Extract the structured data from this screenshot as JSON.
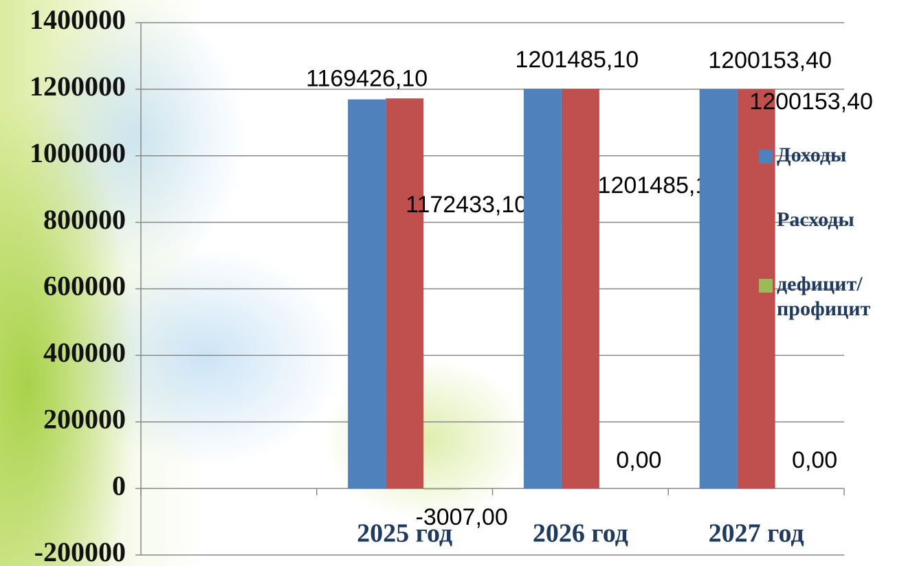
{
  "chart_data": {
    "type": "bar",
    "categories": [
      null,
      "2025 год",
      "2026 год",
      "2027 год"
    ],
    "series": [
      {
        "name": "Доходы",
        "color": "#4f81bd",
        "values": [
          null,
          1169426.1,
          1201485.1,
          1200153.4
        ],
        "value_labels": [
          null,
          "1169426,10",
          "1201485,10",
          "1200153,40"
        ]
      },
      {
        "name": "Расходы",
        "color": "#c0504d",
        "values": [
          null,
          1172433.1,
          1201485.1,
          1200153.4
        ],
        "value_labels": [
          null,
          "1172433,10",
          "1201485,10",
          "1200153,40"
        ]
      },
      {
        "name": "дефицит/ профицит",
        "color": "#9bbb59",
        "values": [
          null,
          -3007,
          0,
          0
        ],
        "value_labels": [
          null,
          "-3007,00",
          "0,00",
          "0,00"
        ]
      }
    ],
    "ylim": [
      -200000,
      1400000
    ],
    "yticks": [
      -200000,
      0,
      200000,
      400000,
      600000,
      800000,
      1000000,
      1200000,
      1400000
    ],
    "grid": true,
    "legend": "right"
  }
}
